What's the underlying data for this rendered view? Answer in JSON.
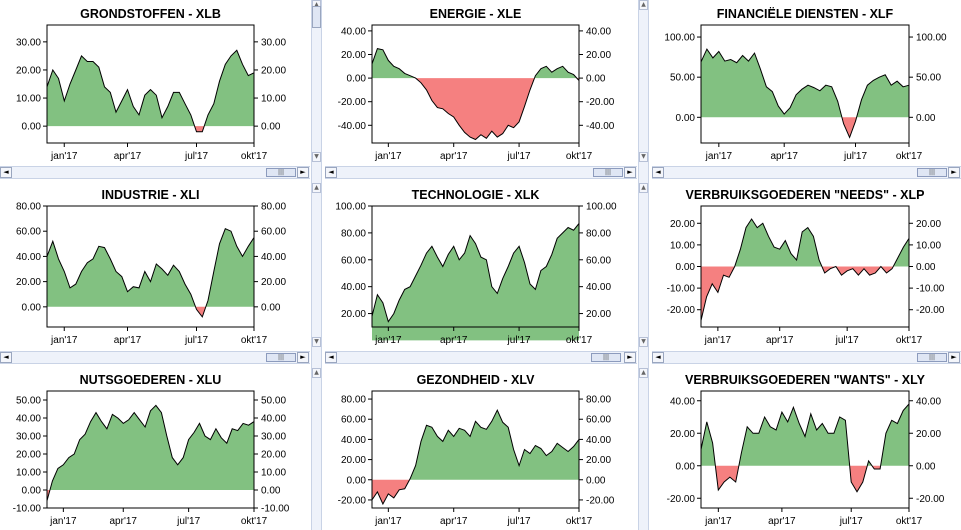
{
  "colors": {
    "positive_fill": "#82c181",
    "negative_fill": "#f58080",
    "line": "#000000",
    "scroll_bg": "#eef2fa"
  },
  "scroll_icons": {
    "left": "◄",
    "right": "►",
    "thumb": "|||",
    "up": "▲",
    "down": "▼"
  },
  "chart_data": [
    {
      "type": "area",
      "title": "GRONDSTOFFEN - XLB",
      "ylim": [
        -6,
        36
      ],
      "yticks": [
        "30.00",
        "20.00",
        "10.00",
        "0.00"
      ],
      "ytick_values": [
        30,
        20,
        10,
        0
      ],
      "xticks": [
        "jan'17",
        "apr'17",
        "jul'17",
        "okt'17"
      ],
      "xtick_values": [
        3,
        14,
        26,
        38
      ],
      "values": [
        14,
        20,
        17,
        9,
        15,
        20,
        25,
        23,
        23,
        21,
        14,
        12,
        5,
        9,
        13,
        7,
        4,
        11,
        13,
        11,
        3,
        7,
        12,
        12,
        8,
        4,
        -2,
        -2,
        4,
        8,
        16,
        22,
        25,
        27,
        22,
        18,
        19
      ]
    },
    {
      "type": "area",
      "title": "ENERGIE - XLE",
      "ylim": [
        -55,
        45
      ],
      "yticks": [
        "40.00",
        "20.00",
        "0.00",
        "-20.00",
        "-40.00"
      ],
      "ytick_values": [
        40,
        20,
        0,
        -20,
        -40
      ],
      "xticks": [
        "jan'17",
        "apr'17",
        "jul'17",
        "okt'17"
      ],
      "xtick_values": [
        3,
        15,
        27,
        39
      ],
      "values": [
        12,
        25,
        24,
        15,
        10,
        8,
        4,
        2,
        0,
        -4,
        -10,
        -19,
        -25,
        -26,
        -30,
        -33,
        -40,
        -46,
        -50,
        -52,
        -48,
        -51,
        -45,
        -50,
        -47,
        -40,
        -42,
        -37,
        -24,
        -10,
        2,
        8,
        10,
        5,
        8,
        10,
        5,
        3,
        -2
      ]
    },
    {
      "type": "area",
      "title": "FINANCIËLE DIENSTEN - XLF",
      "ylim": [
        -32,
        115
      ],
      "yticks": [
        "100.00",
        "50.00",
        "0.00"
      ],
      "ytick_values": [
        100,
        50,
        0
      ],
      "xticks": [
        "jan'17",
        "apr'17",
        "jul'17",
        "okt'17"
      ],
      "xtick_values": [
        3,
        14,
        26,
        38
      ],
      "values": [
        69,
        85,
        74,
        82,
        70,
        72,
        68,
        77,
        70,
        80,
        60,
        38,
        32,
        14,
        4,
        12,
        28,
        35,
        40,
        37,
        33,
        40,
        38,
        20,
        -8,
        -25,
        -5,
        22,
        40,
        46,
        50,
        53,
        40,
        45,
        38,
        40
      ]
    },
    {
      "type": "area",
      "title": "INDUSTRIE - XLI",
      "ylim": [
        -16,
        80
      ],
      "yticks": [
        "80.00",
        "60.00",
        "40.00",
        "20.00",
        "0.00"
      ],
      "ytick_values": [
        80,
        60,
        40,
        20,
        0
      ],
      "xticks": [
        "jan'17",
        "apr'17",
        "jul'17",
        "okt'17"
      ],
      "xtick_values": [
        3,
        14,
        26,
        38
      ],
      "values": [
        40,
        52,
        38,
        28,
        15,
        18,
        28,
        35,
        38,
        48,
        47,
        38,
        28,
        24,
        12,
        16,
        15,
        28,
        20,
        34,
        30,
        25,
        33,
        28,
        18,
        10,
        -2,
        -8,
        5,
        28,
        50,
        62,
        60,
        48,
        40,
        48,
        55
      ]
    },
    {
      "type": "area",
      "title": "TECHNOLOGIE - XLK",
      "ylim": [
        10,
        100
      ],
      "yticks": [
        "100.00",
        "80.00",
        "60.00",
        "40.00",
        "20.00"
      ],
      "ytick_values": [
        100,
        80,
        60,
        40,
        20
      ],
      "xticks": [
        "jan'17",
        "apr'17",
        "jul'17",
        "okt'17"
      ],
      "xtick_values": [
        3,
        15,
        27,
        39
      ],
      "values": [
        18,
        34,
        28,
        14,
        20,
        30,
        38,
        40,
        48,
        56,
        65,
        70,
        62,
        55,
        64,
        70,
        60,
        65,
        78,
        72,
        62,
        60,
        40,
        35,
        46,
        55,
        65,
        70,
        58,
        42,
        38,
        52,
        55,
        64,
        76,
        80,
        84,
        82,
        87
      ]
    },
    {
      "type": "area",
      "title": "VERBRUIKSGOEDEREN \"NEEDS\" - XLP",
      "ylim": [
        -28,
        28
      ],
      "yticks": [
        "20.00",
        "10.00",
        "0.00",
        "-10.00",
        "-20.00"
      ],
      "ytick_values": [
        20,
        10,
        0,
        -10,
        -20
      ],
      "xticks": [
        "jan'17",
        "apr'17",
        "jul'17",
        "okt'17"
      ],
      "xtick_values": [
        3,
        14,
        26,
        38
      ],
      "values": [
        -25,
        -14,
        -8,
        -12,
        -4,
        -5,
        0,
        8,
        18,
        22,
        18,
        20,
        14,
        9,
        8,
        12,
        6,
        3,
        16,
        18,
        14,
        3,
        -3,
        -1,
        0,
        -4,
        -2,
        -1,
        -4,
        -1,
        -4,
        -3,
        0,
        -3,
        -1,
        4,
        9,
        13
      ]
    },
    {
      "type": "area",
      "title": "NUTSGOEDEREN - XLU",
      "ylim": [
        -10,
        55
      ],
      "yticks": [
        "50.00",
        "40.00",
        "30.00",
        "20.00",
        "10.00",
        "0.00",
        "-10.00"
      ],
      "ytick_values": [
        50,
        40,
        30,
        20,
        10,
        0,
        -10
      ],
      "xticks": [
        "jan'17",
        "apr'17",
        "jul'17",
        "okt'17"
      ],
      "xtick_values": [
        3,
        14,
        26,
        38
      ],
      "values": [
        -6,
        5,
        12,
        14,
        18,
        20,
        28,
        31,
        38,
        43,
        38,
        34,
        42,
        40,
        37,
        39,
        43,
        39,
        35,
        44,
        47,
        43,
        30,
        18,
        14,
        18,
        28,
        32,
        37,
        30,
        28,
        34,
        29,
        26,
        34,
        33,
        37,
        36,
        38
      ]
    },
    {
      "type": "area",
      "title": "GEZONDHEID - XLV",
      "ylim": [
        -28,
        88
      ],
      "yticks": [
        "80.00",
        "60.00",
        "40.00",
        "20.00",
        "0.00",
        "-20.00"
      ],
      "ytick_values": [
        80,
        60,
        40,
        20,
        0,
        -20
      ],
      "xticks": [
        "jan'17",
        "apr'17",
        "jul'17",
        "okt'17"
      ],
      "xtick_values": [
        3,
        15,
        27,
        39
      ],
      "values": [
        -20,
        -12,
        -24,
        -14,
        -18,
        -10,
        -9,
        1,
        14,
        38,
        54,
        52,
        43,
        38,
        49,
        43,
        51,
        49,
        43,
        58,
        52,
        50,
        58,
        69,
        57,
        52,
        30,
        14,
        30,
        26,
        34,
        31,
        24,
        28,
        36,
        32,
        28,
        33,
        40
      ]
    },
    {
      "type": "area",
      "title": "VERBRUIKSGOEDEREN \"WANTS\" - XLY",
      "ylim": [
        -26,
        46
      ],
      "yticks": [
        "40.00",
        "20.00",
        "0.00",
        "-20.00"
      ],
      "ytick_values": [
        40,
        20,
        0,
        -20
      ],
      "xticks": [
        "jan'17",
        "apr'17",
        "jul'17",
        "okt'17"
      ],
      "xtick_values": [
        3,
        14,
        26,
        38
      ],
      "values": [
        10,
        27,
        14,
        -15,
        -10,
        -7,
        -10,
        8,
        24,
        20,
        20,
        30,
        24,
        22,
        33,
        27,
        36,
        26,
        18,
        32,
        22,
        26,
        20,
        20,
        30,
        28,
        -10,
        -16,
        -10,
        3,
        -2,
        -2,
        20,
        28,
        26,
        34,
        38
      ]
    }
  ]
}
